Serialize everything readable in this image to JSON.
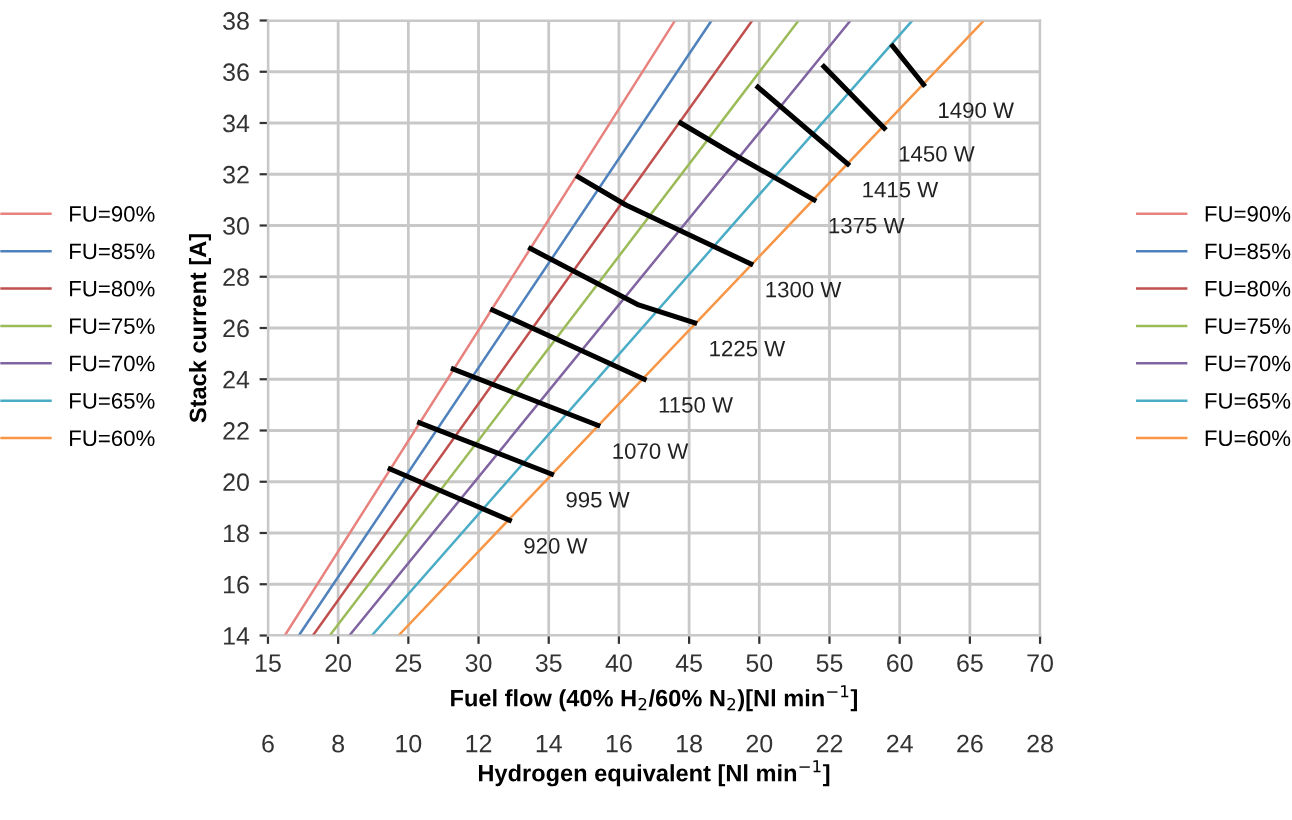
{
  "chart_data": {
    "type": "line",
    "xlabel": "Fuel flow (40% H$_{2}$/60% N$_{2}$)[Nl min$^{−1}$]",
    "ylabel": "Stack current [A]",
    "x2label": "Hydrogen equivalent [Nl min$^{−1}$]",
    "xlim": [
      15,
      70
    ],
    "xticks": [
      15,
      20,
      25,
      30,
      35,
      40,
      45,
      50,
      55,
      60,
      65,
      70
    ],
    "x2lim": [
      6,
      28
    ],
    "x2ticks": [
      6,
      8,
      10,
      12,
      14,
      16,
      18,
      20,
      22,
      24,
      26,
      28
    ],
    "ylim": [
      14,
      38
    ],
    "yticks": [
      14,
      16,
      18,
      20,
      22,
      24,
      26,
      28,
      30,
      32,
      34,
      36,
      38
    ],
    "grid": true,
    "legend": "left",
    "marker": "none",
    "line_style": "solid",
    "series": [
      {
        "name": "FU=90%",
        "color": "#e8827f",
        "x": [
          16.2,
          44.0
        ],
        "values": [
          14,
          38
        ]
      },
      {
        "name": "FU=85%",
        "color": "#4f81bd",
        "x": [
          17.2,
          46.6
        ],
        "values": [
          14,
          38
        ]
      },
      {
        "name": "FU=80%",
        "color": "#c0504d",
        "x": [
          18.2,
          49.5
        ],
        "values": [
          14,
          38
        ]
      },
      {
        "name": "FU=75%",
        "color": "#9bbb59",
        "x": [
          19.4,
          52.8
        ],
        "values": [
          14,
          38
        ]
      },
      {
        "name": "FU=70%",
        "color": "#8064a2",
        "x": [
          20.8,
          56.5
        ],
        "values": [
          14,
          38
        ]
      },
      {
        "name": "FU=65%",
        "color": "#4bacc6",
        "x": [
          22.4,
          60.9
        ],
        "values": [
          14,
          38
        ]
      },
      {
        "name": "FU=60%",
        "color": "#f79646",
        "x": [
          24.3,
          66.0
        ],
        "values": [
          14,
          38
        ]
      },
      {
        "color": "#000000",
        "x": [
          23.7,
          32.2
        ],
        "values": [
          20.5,
          18.5
        ]
      },
      {
        "color": "#000000",
        "x": [
          25.8,
          35.2
        ],
        "values": [
          22.3,
          20.3
        ]
      },
      {
        "color": "#000000",
        "x": [
          28.2,
          38.5
        ],
        "values": [
          24.4,
          22.2
        ]
      },
      {
        "color": "#000000",
        "x": [
          31.0,
          41.8
        ],
        "values": [
          26.7,
          24.0
        ]
      },
      {
        "color": "#000000",
        "x": [
          33.7,
          41.4,
          45.4
        ],
        "values": [
          29.1,
          26.9,
          26.2
        ]
      },
      {
        "color": "#000000",
        "x": [
          37.1,
          40.5,
          49.4
        ],
        "values": [
          31.9,
          30.8,
          28.5
        ]
      },
      {
        "color": "#000000",
        "x": [
          44.4,
          48.1,
          53.9
        ],
        "values": [
          34.0,
          32.8,
          31.0
        ]
      },
      {
        "color": "#000000",
        "x": [
          49.9,
          56.3
        ],
        "values": [
          35.4,
          32.4
        ]
      },
      {
        "color": "#000000",
        "x": [
          54.6,
          58.9
        ],
        "values": [
          36.2,
          33.8
        ]
      },
      {
        "color": "#000000",
        "x": [
          59.5,
          61.7
        ],
        "values": [
          37.0,
          35.5
        ]
      }
    ],
    "annotations": [
      {
        "text": "920 W",
        "x": 32.2,
        "y": 18.5
      },
      {
        "text": "995 W",
        "x": 35.2,
        "y": 20.3
      },
      {
        "text": "1070 W",
        "x": 38.5,
        "y": 22.2
      },
      {
        "text": "1150 W",
        "x": 41.8,
        "y": 24.0
      },
      {
        "text": "1225 W",
        "x": 45.4,
        "y": 26.2
      },
      {
        "text": "1300 W",
        "x": 49.4,
        "y": 28.5
      },
      {
        "text": "1375 W",
        "x": 53.9,
        "y": 31.0
      },
      {
        "text": "1415 W",
        "x": 56.3,
        "y": 32.4
      },
      {
        "text": "1450 W",
        "x": 58.9,
        "y": 33.8
      },
      {
        "text": "1490 W",
        "x": 61.7,
        "y": 35.5
      }
    ]
  }
}
